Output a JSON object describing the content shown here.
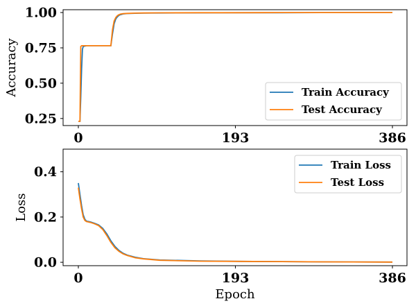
{
  "chart_data": [
    {
      "type": "line",
      "xlabel": "",
      "ylabel": "Accuracy",
      "xlim": [
        0,
        386
      ],
      "ylim": [
        0.2,
        1.02
      ],
      "xticks": [
        0,
        193,
        386
      ],
      "yticks": [
        0.25,
        0.5,
        0.75,
        1.0
      ],
      "ytick_labels": [
        "0.25",
        "0.50",
        "0.75",
        "1.00"
      ],
      "grid": false,
      "legend_position": "lower-right",
      "series": [
        {
          "name": "Train Accuracy",
          "color": "#1f77b4",
          "x": [
            0,
            2,
            3,
            4,
            5,
            6,
            10,
            20,
            40,
            42,
            44,
            46,
            48,
            50,
            52,
            55,
            60,
            70,
            80,
            100,
            150,
            200,
            250,
            300,
            350,
            386
          ],
          "y": [
            0.23,
            0.23,
            0.4,
            0.6,
            0.74,
            0.76,
            0.765,
            0.765,
            0.765,
            0.85,
            0.92,
            0.955,
            0.97,
            0.98,
            0.985,
            0.99,
            0.993,
            0.995,
            0.996,
            0.997,
            0.998,
            0.999,
            0.999,
            1.0,
            1.0,
            1.0
          ]
        },
        {
          "name": "Test Accuracy",
          "color": "#ff7f0e",
          "x": [
            0,
            2,
            3,
            4,
            5,
            6,
            10,
            20,
            40,
            42,
            44,
            46,
            48,
            50,
            52,
            55,
            60,
            70,
            80,
            100,
            150,
            200,
            250,
            300,
            350,
            386
          ],
          "y": [
            0.23,
            0.23,
            0.76,
            0.765,
            0.765,
            0.765,
            0.765,
            0.765,
            0.765,
            0.88,
            0.94,
            0.965,
            0.978,
            0.985,
            0.989,
            0.992,
            0.994,
            0.996,
            0.997,
            0.998,
            0.999,
            0.999,
            1.0,
            1.0,
            1.0,
            1.0
          ]
        }
      ]
    },
    {
      "type": "line",
      "xlabel": "Epoch",
      "ylabel": "Loss",
      "xlim": [
        0,
        386
      ],
      "ylim": [
        -0.015,
        0.5
      ],
      "xticks": [
        0,
        193,
        386
      ],
      "yticks": [
        0.0,
        0.2,
        0.4
      ],
      "ytick_labels": [
        "0.0",
        "0.2",
        "0.4"
      ],
      "grid": false,
      "legend_position": "upper-right",
      "series": [
        {
          "name": "Train Loss",
          "color": "#1f77b4",
          "x": [
            0,
            2,
            4,
            6,
            8,
            10,
            15,
            20,
            25,
            30,
            35,
            40,
            45,
            50,
            55,
            60,
            70,
            80,
            100,
            150,
            200,
            250,
            300,
            386
          ],
          "y": [
            0.35,
            0.3,
            0.25,
            0.21,
            0.19,
            0.182,
            0.178,
            0.172,
            0.165,
            0.15,
            0.125,
            0.095,
            0.07,
            0.052,
            0.04,
            0.032,
            0.022,
            0.016,
            0.01,
            0.006,
            0.004,
            0.003,
            0.002,
            0.001
          ]
        },
        {
          "name": "Test Loss",
          "color": "#ff7f0e",
          "x": [
            0,
            2,
            4,
            6,
            8,
            10,
            15,
            20,
            25,
            30,
            35,
            40,
            45,
            50,
            55,
            60,
            70,
            80,
            100,
            150,
            200,
            250,
            300,
            386
          ],
          "y": [
            0.33,
            0.28,
            0.235,
            0.2,
            0.185,
            0.18,
            0.176,
            0.17,
            0.162,
            0.145,
            0.118,
            0.088,
            0.064,
            0.048,
            0.037,
            0.03,
            0.02,
            0.015,
            0.009,
            0.005,
            0.004,
            0.003,
            0.002,
            0.001
          ]
        }
      ]
    }
  ]
}
